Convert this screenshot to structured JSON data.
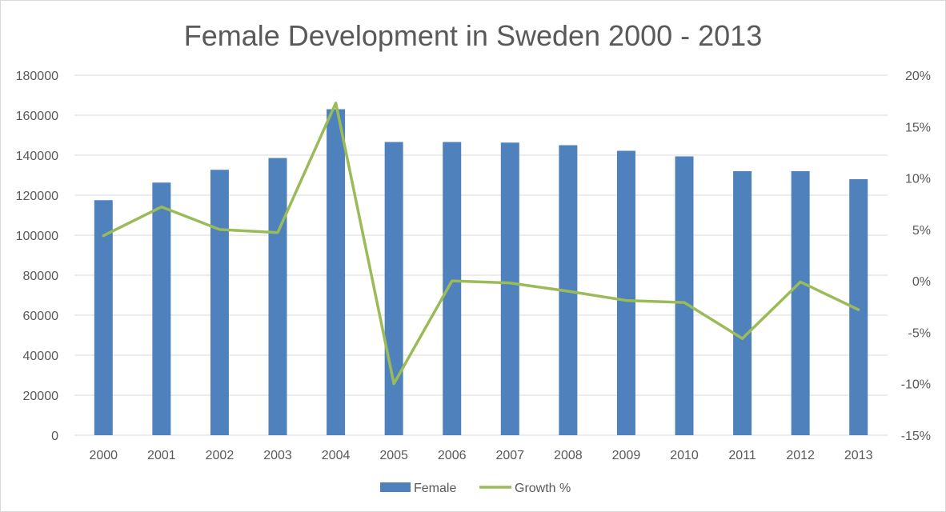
{
  "chart_data": {
    "type": "bar",
    "title": "Female Development in Sweden 2000 - 2013",
    "xlabel": "",
    "ylabel": "",
    "y2label": "",
    "categories": [
      "2000",
      "2001",
      "2002",
      "2003",
      "2004",
      "2005",
      "2006",
      "2007",
      "2008",
      "2009",
      "2010",
      "2011",
      "2012",
      "2013"
    ],
    "series": [
      {
        "name": "Female",
        "type": "bar",
        "axis": "left",
        "color": "#4f81bd",
        "values": [
          117500,
          126300,
          132700,
          138600,
          163000,
          146600,
          146600,
          146300,
          145000,
          142200,
          139400,
          132000,
          132000,
          128000
        ]
      },
      {
        "name": "Growth %",
        "type": "line",
        "axis": "right",
        "color": "#9bbb59",
        "values": [
          4.4,
          7.2,
          5.0,
          4.7,
          17.3,
          -10.0,
          0.0,
          -0.2,
          -1.0,
          -1.9,
          -2.1,
          -5.6,
          -0.1,
          -2.8
        ]
      }
    ],
    "ylim": [
      0,
      180000
    ],
    "yticks": [
      "0",
      "20000",
      "40000",
      "60000",
      "80000",
      "100000",
      "120000",
      "140000",
      "160000",
      "180000"
    ],
    "y2lim": [
      -15,
      20
    ],
    "y2ticks": [
      "-15%",
      "-10%",
      "-5%",
      "0%",
      "5%",
      "10%",
      "15%",
      "20%"
    ],
    "grid": true,
    "legend_position": "bottom"
  },
  "colors": {
    "bar": "#4f81bd",
    "line": "#9bbb59",
    "grid": "#d9d9d9",
    "text": "#595959"
  }
}
